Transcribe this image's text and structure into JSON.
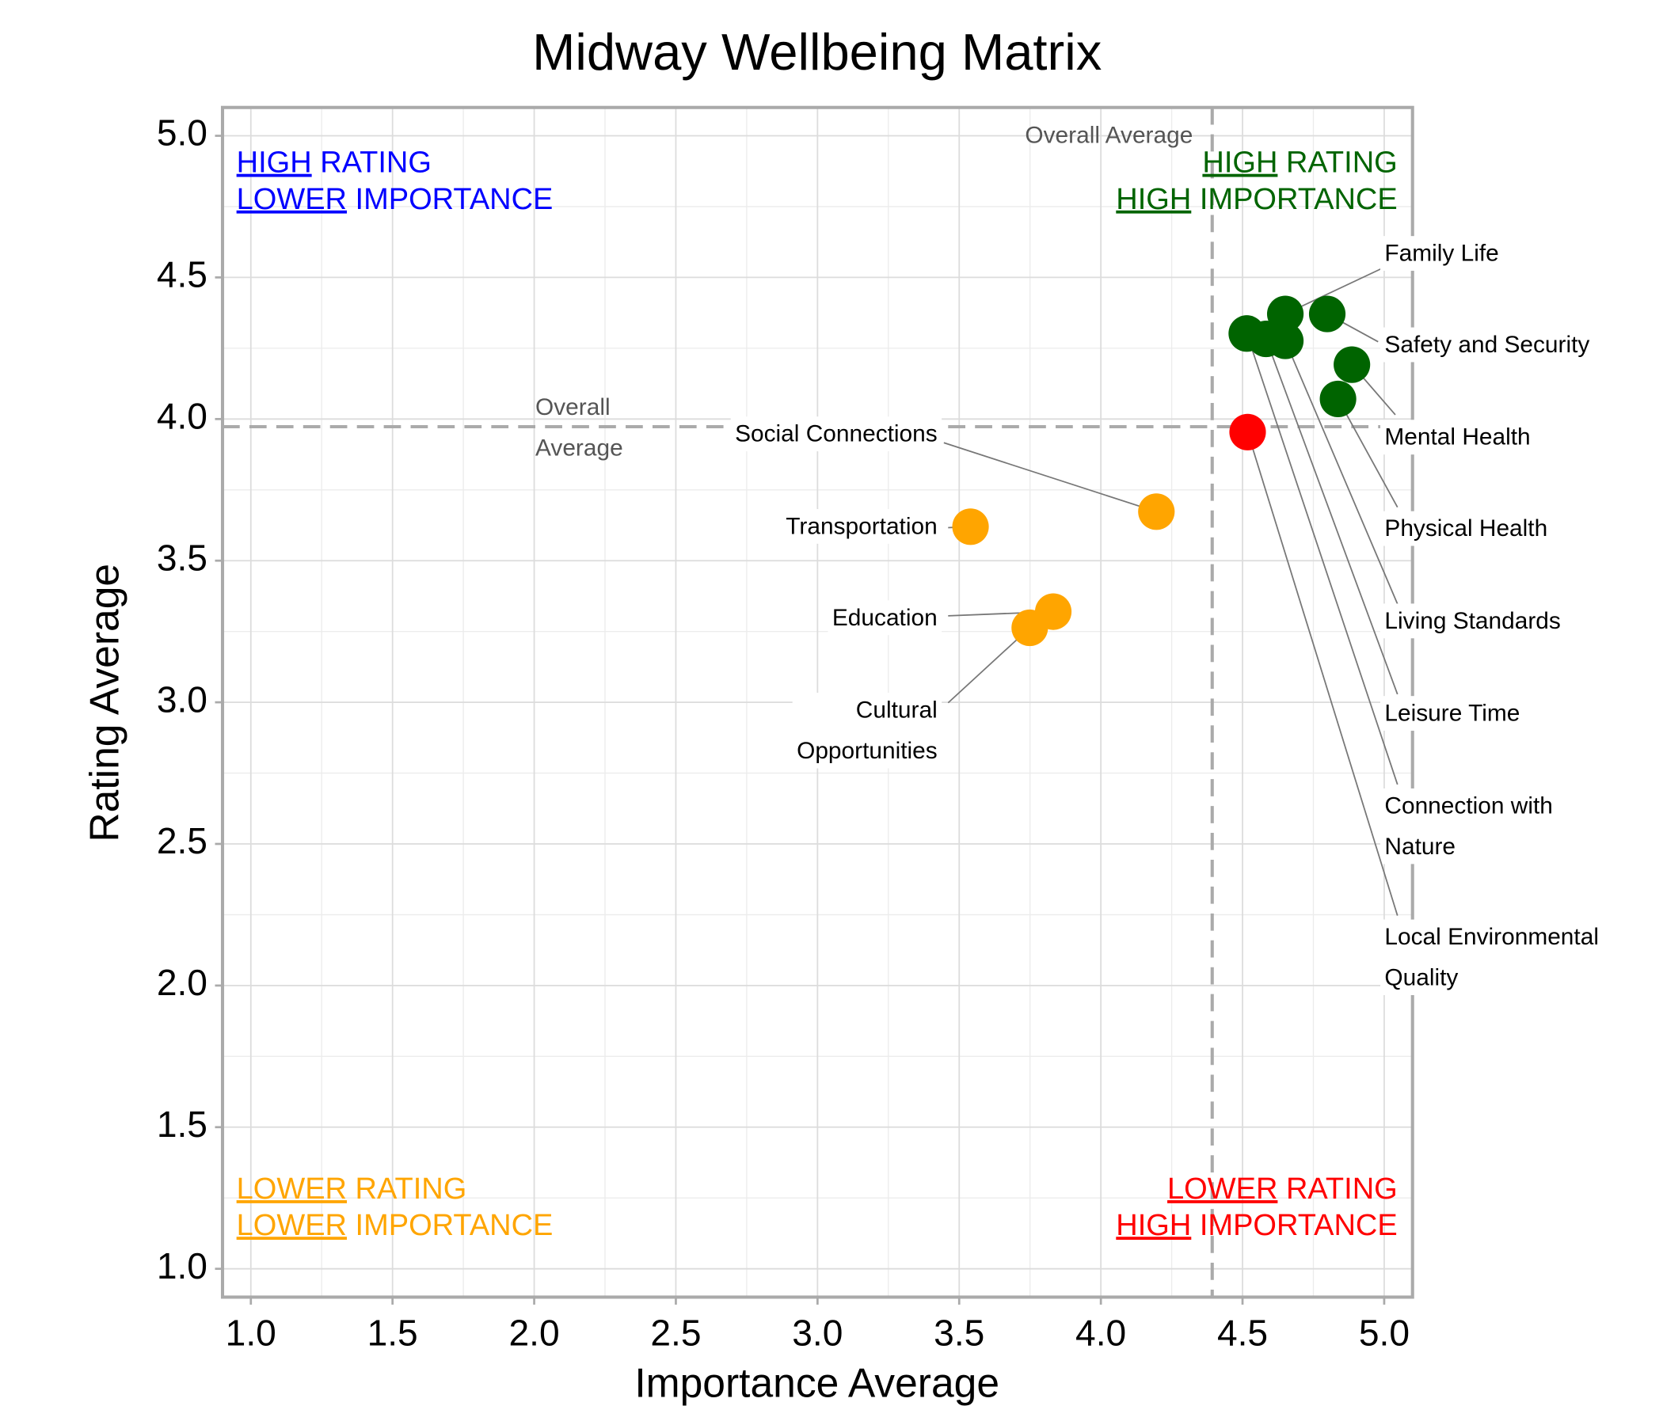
{
  "chart_data": {
    "type": "scatter",
    "title": "Midway Wellbeing Matrix",
    "x_label": "Importance Average",
    "y_label": "Rating Average",
    "xlim": [
      0.9,
      5.1
    ],
    "ylim": [
      0.9,
      5.1
    ],
    "xticks": [
      {
        "value": 1,
        "label": "1.0"
      },
      1.5,
      {
        "value": 2,
        "label": "2.0"
      },
      2.5,
      {
        "value": 3,
        "label": "3.0"
      },
      3.5,
      {
        "value": 4,
        "label": "4.0"
      },
      4.5,
      {
        "value": 5,
        "label": "5.0"
      }
    ],
    "yticks": [
      {
        "value": 1,
        "label": "1.0"
      },
      1.5,
      {
        "value": 2,
        "label": "2.0"
      },
      2.5,
      {
        "value": 3,
        "label": "3.0"
      },
      3.5,
      {
        "value": 4,
        "label": "4.0"
      },
      4.5,
      {
        "value": 5,
        "label": "5.0"
      }
    ],
    "grid": true,
    "average_x": 4.393,
    "average_y": 3.973,
    "average_x_label": "Overall Average",
    "average_y_label": "Overall Average",
    "points": [
      {
        "label": "Family Life",
        "x": 4.651,
        "y": 4.371,
        "color": "#006400"
      },
      {
        "label": "Safety and Security",
        "x": 4.799,
        "y": 4.371,
        "color": "#006400"
      },
      {
        "label": "Mental Health",
        "x": 4.886,
        "y": 4.192,
        "color": "#006400"
      },
      {
        "label": "Physical Health",
        "x": 4.837,
        "y": 4.071,
        "color": "#006400"
      },
      {
        "label": "Living Standards",
        "x": 4.651,
        "y": 4.276,
        "color": "#006400"
      },
      {
        "label": "Leisure Time",
        "x": 4.583,
        "y": 4.283,
        "color": "#006400"
      },
      {
        "label": "Connection with Nature",
        "x": 4.515,
        "y": 4.302,
        "color": "#006400"
      },
      {
        "label": "Local Environmental Quality",
        "x": 4.518,
        "y": 3.954,
        "color": "#ff0000"
      },
      {
        "label": "Social Connections",
        "x": 4.196,
        "y": 3.673,
        "color": "#ffa500"
      },
      {
        "label": "Transportation",
        "x": 3.54,
        "y": 3.62,
        "color": "#ffa500"
      },
      {
        "label": "Education",
        "x": 3.832,
        "y": 3.32,
        "color": "#ffa500"
      },
      {
        "label": "Cultural Opportunities",
        "x": 3.749,
        "y": 3.263,
        "color": "#ffa500"
      }
    ],
    "quadrants": [
      {
        "lines": [
          "HIGH RATING",
          "LOWER IMPORTANCE"
        ],
        "color": "#0000ff",
        "corner": "top-left"
      },
      {
        "lines": [
          "HIGH RATING",
          "HIGH IMPORTANCE"
        ],
        "color": "#006400",
        "corner": "top-right"
      },
      {
        "lines": [
          "LOWER RATING",
          "LOWER IMPORTANCE"
        ],
        "color": "#ffa500",
        "corner": "bottom-left"
      },
      {
        "lines": [
          "LOWER RATING",
          "HIGH IMPORTANCE"
        ],
        "color": "#ff0000",
        "corner": "bottom-right"
      }
    ]
  }
}
